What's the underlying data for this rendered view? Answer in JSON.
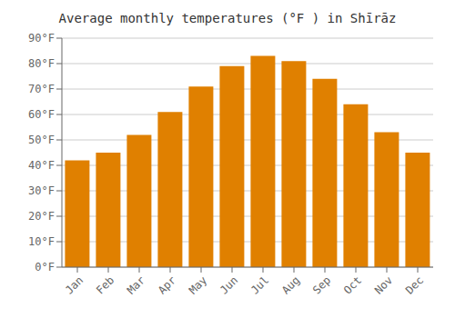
{
  "chart_data": {
    "type": "bar",
    "title": "Average monthly temperatures (°F ) in Shīrāz",
    "categories": [
      "Jan",
      "Feb",
      "Mar",
      "Apr",
      "May",
      "Jun",
      "Jul",
      "Aug",
      "Sep",
      "Oct",
      "Nov",
      "Dec"
    ],
    "values": [
      42,
      45,
      52,
      61,
      71,
      79,
      83,
      81,
      74,
      64,
      53,
      45
    ],
    "color": "#E08000",
    "ylim": [
      0,
      90
    ],
    "yticks": [
      {
        "value": 0,
        "label": "0°F"
      },
      {
        "value": 10,
        "label": "10°F"
      },
      {
        "value": 20,
        "label": "20°F"
      },
      {
        "value": 30,
        "label": "30°F"
      },
      {
        "value": 40,
        "label": "40°F"
      },
      {
        "value": 50,
        "label": "50°F"
      },
      {
        "value": 60,
        "label": "60°F"
      },
      {
        "value": 70,
        "label": "70°F"
      },
      {
        "value": 80,
        "label": "80°F"
      },
      {
        "value": 90,
        "label": "90°F"
      }
    ],
    "grid": true
  }
}
